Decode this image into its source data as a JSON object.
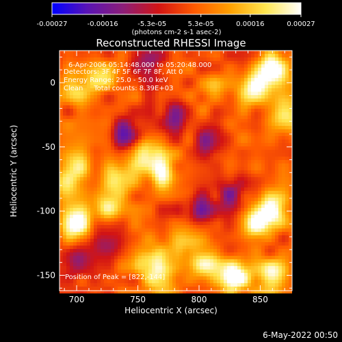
{
  "chart_data": {
    "type": "heatmap",
    "title": "Reconstructed RHESSI Image",
    "xlabel": "Heliocentric X (arcsec)",
    "ylabel": "Heliocentric Y (arcsec)",
    "xlim": [
      686,
      876
    ],
    "ylim": [
      -162,
      25
    ],
    "x_ticks": [
      700,
      750,
      800,
      850
    ],
    "y_ticks": [
      0,
      -50,
      -100,
      -150
    ],
    "colorbar": {
      "unit_label": "(photons cm-2 s-1 asec-2)",
      "range": [
        -0.00027,
        0.00027
      ],
      "tick_labels": [
        "-0.00027",
        "-0.00016",
        "-5.3e-05",
        "5.3e-05",
        "0.00016",
        "0.00027"
      ],
      "tick_values": [
        -0.00027,
        -0.00016,
        -5.3e-05,
        5.3e-05,
        0.00016,
        0.00027
      ],
      "colors": [
        "#0000ff",
        "#5a14b4",
        "#8c1e78",
        "#d21414",
        "#ff5a00",
        "#ffa000",
        "#ffe650",
        "#ffffff"
      ]
    },
    "info_lines": [
      "6-Apr-2006 05:14:48.000 to 05:20:48.000",
      "Detectors: 3F 4F 5F 6F 7F 8F, Att 0",
      "Energy Range: 25.0 - 50.0 keV",
      "Clean     Total counts: 8.39E+03"
    ],
    "peak_label": "Position of Peak = [822,-144]",
    "peak": [
      822,
      -144
    ],
    "hot_spots": [
      {
        "x": 860,
        "y": 10,
        "value": 0.00025
      },
      {
        "x": 845,
        "y": -5,
        "value": 0.00022
      },
      {
        "x": 870,
        "y": -25,
        "value": 0.00018
      },
      {
        "x": 755,
        "y": -55,
        "value": 0.00024
      },
      {
        "x": 770,
        "y": -70,
        "value": 0.0002
      },
      {
        "x": 735,
        "y": -75,
        "value": 0.00018
      },
      {
        "x": 700,
        "y": -65,
        "value": 0.00014
      },
      {
        "x": 725,
        "y": -95,
        "value": 0.00016
      },
      {
        "x": 700,
        "y": -110,
        "value": 0.00024
      },
      {
        "x": 690,
        "y": -80,
        "value": 0.00012
      },
      {
        "x": 845,
        "y": -110,
        "value": 0.00022
      },
      {
        "x": 860,
        "y": -100,
        "value": 0.00024
      },
      {
        "x": 805,
        "y": -140,
        "value": 0.0002
      },
      {
        "x": 830,
        "y": -150,
        "value": 0.00027
      },
      {
        "x": 860,
        "y": -150,
        "value": 0.00022
      },
      {
        "x": 760,
        "y": -140,
        "value": 0.0002
      },
      {
        "x": 770,
        "y": -155,
        "value": 0.00016
      },
      {
        "x": 700,
        "y": -5,
        "value": 0.00014
      },
      {
        "x": 720,
        "y": 5,
        "value": 0.00012
      },
      {
        "x": 810,
        "y": -5,
        "value": 0.0001
      },
      {
        "x": 790,
        "y": -125,
        "value": 0.00012
      }
    ],
    "cold_spots": [
      {
        "x": 740,
        "y": -40,
        "value": -0.00018
      },
      {
        "x": 700,
        "y": -140,
        "value": -0.00016
      },
      {
        "x": 810,
        "y": -45,
        "value": -0.00016
      },
      {
        "x": 825,
        "y": -85,
        "value": -0.00014
      },
      {
        "x": 800,
        "y": -100,
        "value": -0.00016
      },
      {
        "x": 725,
        "y": -125,
        "value": -0.00014
      },
      {
        "x": 780,
        "y": -25,
        "value": -0.00014
      },
      {
        "x": 760,
        "y": 15,
        "value": -0.00012
      }
    ]
  },
  "footer": {
    "timestamp": "6-May-2022 00:50"
  }
}
